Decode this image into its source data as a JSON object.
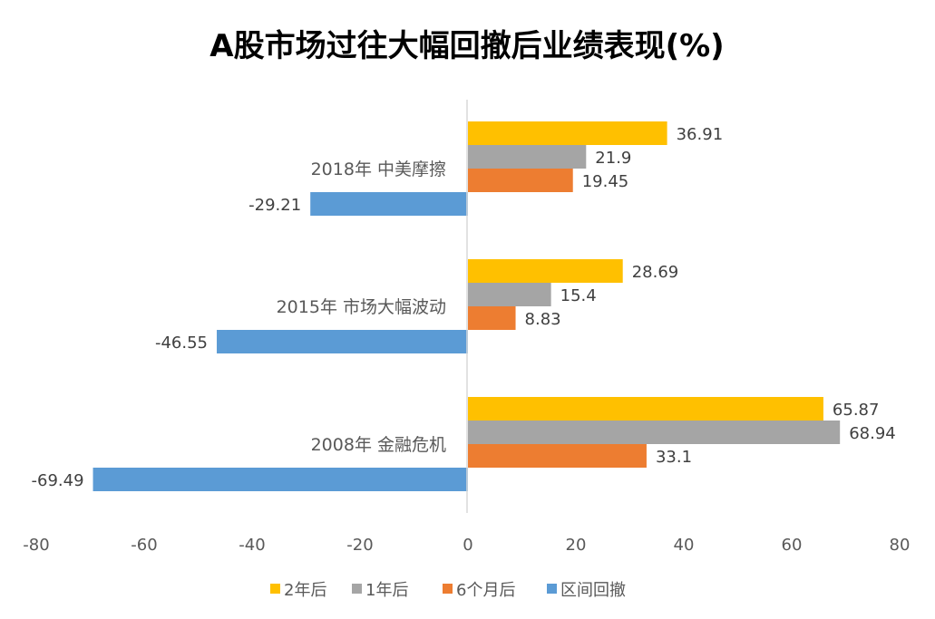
{
  "chart_data": {
    "type": "bar",
    "orientation": "horizontal",
    "title": "A股市场过往大幅回撤后业绩表现(%)",
    "categories": [
      "2018年 中美摩擦",
      "2015年 市场大幅波动",
      "2008年 金融危机"
    ],
    "series": [
      {
        "name": "2年后",
        "color": "#FFC000",
        "values": [
          36.91,
          28.69,
          65.87
        ]
      },
      {
        "name": "1年后",
        "color": "#A5A5A5",
        "values": [
          21.9,
          15.4,
          68.94
        ]
      },
      {
        "name": "6个月后",
        "color": "#ED7D31",
        "values": [
          19.45,
          8.83,
          33.1
        ]
      },
      {
        "name": "区间回撤",
        "color": "#5B9BD5",
        "values": [
          -29.21,
          -46.55,
          -69.49
        ]
      }
    ],
    "xlim": [
      -80,
      80
    ],
    "xticks": [
      "-80",
      "-60",
      "-40",
      "-20",
      "0",
      "20",
      "40",
      "60",
      "80"
    ],
    "grid": false,
    "legend_position": "bottom",
    "data_labels": true
  }
}
